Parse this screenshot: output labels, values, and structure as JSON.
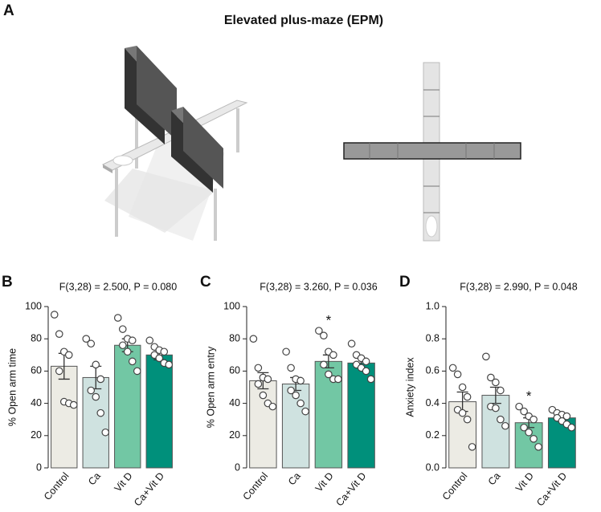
{
  "panel_a": {
    "label": "A",
    "title": "Elevated plus-maze (EPM)"
  },
  "chart_data": [
    {
      "type": "bar",
      "panel_label": "B",
      "subtitle": "F(3,28) = 2.500, P = 0.080",
      "y_label": "% Open arm time",
      "categories": [
        "Control",
        "Ca",
        "Vit D",
        "Ca+Vit D"
      ],
      "colors": [
        "#ecebe4",
        "#cfe2e0",
        "#72c7a4",
        "#00907b"
      ],
      "values": [
        63,
        56,
        76,
        70
      ],
      "errors": [
        8,
        7,
        4,
        3
      ],
      "points": [
        [
          95,
          83,
          72,
          70,
          60,
          41,
          40,
          39
        ],
        [
          80,
          77,
          64,
          55,
          48,
          44,
          34,
          22
        ],
        [
          93,
          86,
          80,
          79,
          76,
          72,
          66,
          60
        ],
        [
          79,
          75,
          73,
          72,
          70,
          68,
          65,
          64
        ]
      ],
      "significance": [
        null,
        null,
        null,
        null
      ],
      "ylim": [
        0,
        100
      ],
      "yticks": [
        0,
        20,
        40,
        60,
        80,
        100
      ]
    },
    {
      "type": "bar",
      "panel_label": "C",
      "subtitle": "F(3,28) = 3.260, P = 0.036",
      "y_label": "% Open arm entry",
      "categories": [
        "Control",
        "Ca",
        "Vit D",
        "Ca+Vit D"
      ],
      "colors": [
        "#ecebe4",
        "#cfe2e0",
        "#72c7a4",
        "#00907b"
      ],
      "values": [
        54,
        52,
        66,
        65
      ],
      "errors": [
        5,
        4,
        4,
        3
      ],
      "points": [
        [
          80,
          62,
          56,
          55,
          52,
          45,
          40,
          38
        ],
        [
          72,
          62,
          55,
          54,
          48,
          45,
          40,
          35
        ],
        [
          85,
          82,
          72,
          70,
          64,
          58,
          55,
          55
        ],
        [
          77,
          70,
          68,
          66,
          64,
          62,
          60,
          55
        ]
      ],
      "significance": [
        null,
        null,
        "*",
        null
      ],
      "ylim": [
        0,
        100
      ],
      "yticks": [
        0,
        20,
        40,
        60,
        80,
        100
      ]
    },
    {
      "type": "bar",
      "panel_label": "D",
      "subtitle": "F(3,28) = 2.990, P = 0.048",
      "y_label": "Anxiety index",
      "categories": [
        "Control",
        "Ca",
        "Vit D",
        "Ca+Vit D"
      ],
      "colors": [
        "#ecebe4",
        "#cfe2e0",
        "#72c7a4",
        "#00907b"
      ],
      "values": [
        0.41,
        0.45,
        0.28,
        0.31
      ],
      "errors": [
        0.06,
        0.05,
        0.03,
        0.02
      ],
      "points": [
        [
          0.62,
          0.58,
          0.5,
          0.44,
          0.36,
          0.34,
          0.3,
          0.13
        ],
        [
          0.69,
          0.56,
          0.53,
          0.48,
          0.38,
          0.37,
          0.3,
          0.26
        ],
        [
          0.38,
          0.35,
          0.32,
          0.3,
          0.25,
          0.22,
          0.18,
          0.13
        ],
        [
          0.36,
          0.34,
          0.33,
          0.32,
          0.31,
          0.29,
          0.27,
          0.25
        ]
      ],
      "significance": [
        null,
        null,
        "*",
        null
      ],
      "ylim": [
        0,
        1
      ],
      "yticks": [
        {
          "value": 0,
          "label": "0.0"
        },
        0.2,
        0.4,
        0.6,
        0.8,
        {
          "value": 1,
          "label": "1.0"
        }
      ]
    }
  ]
}
